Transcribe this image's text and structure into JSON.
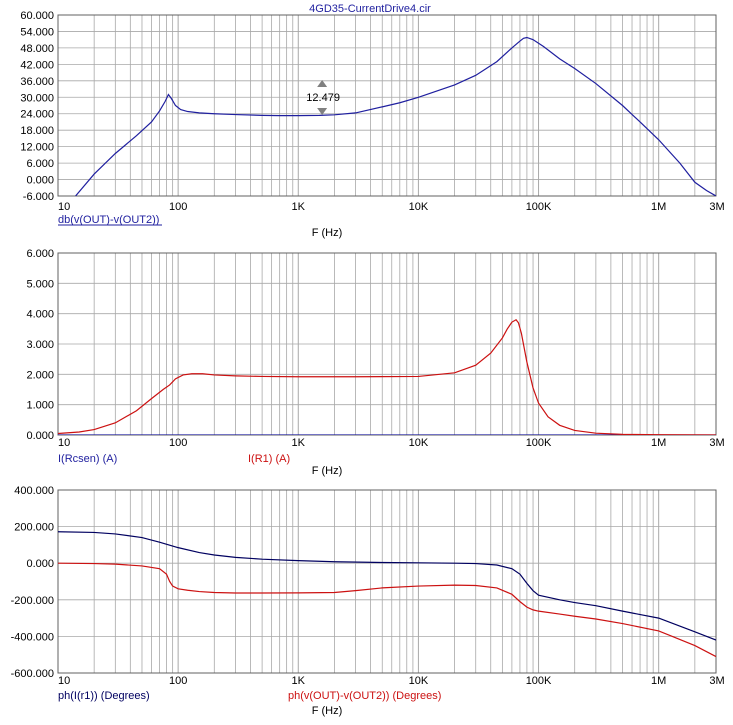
{
  "title": "4GD35-CurrentDrive4.cir",
  "colors": {
    "blue": "#1f1f9f",
    "red": "#cc1111",
    "navy": "#000060",
    "grid": "#a8a8a8",
    "axis": "#000000"
  },
  "chart_data": [
    {
      "type": "line",
      "xscale": "log",
      "xlim": [
        10,
        3000000
      ],
      "x_tick_labels": [
        "10",
        "100",
        "1K",
        "10K",
        "100K",
        "1M",
        "3M"
      ],
      "x_tick_values": [
        10,
        100,
        1000,
        10000,
        100000,
        1000000,
        3000000
      ],
      "ylim": [
        -6,
        60
      ],
      "y_tick_labels": [
        "60.000",
        "54.000",
        "48.000",
        "42.000",
        "36.000",
        "30.000",
        "24.000",
        "18.000",
        "12.000",
        "6.000",
        "0.000",
        "-6.000"
      ],
      "xlabel": "F (Hz)",
      "cursor_label": "12.479",
      "cursor_x": 1580,
      "series": [
        {
          "name": "db(v(OUT)-v(OUT2))",
          "color": "#1f1f9f",
          "x": [
            14,
            20,
            30,
            45,
            60,
            70,
            78,
            83,
            88,
            95,
            105,
            120,
            150,
            200,
            300,
            500,
            700,
            1000,
            1500,
            2000,
            3000,
            5000,
            7000,
            10000,
            20000,
            30000,
            45000,
            60000,
            70000,
            75000,
            80000,
            90000,
            110000,
            150000,
            200000,
            300000,
            500000,
            700000,
            1000000,
            1500000,
            2000000,
            2500000,
            3000000
          ],
          "y": [
            -6,
            2,
            9.5,
            16,
            21,
            25,
            28.5,
            31,
            29.5,
            27,
            25.5,
            24.8,
            24.3,
            24,
            23.7,
            23.4,
            23.3,
            23.3,
            23.4,
            23.6,
            24.3,
            26.5,
            28,
            30,
            34.5,
            38,
            43,
            48,
            50.5,
            51.5,
            51.8,
            51,
            48.5,
            44,
            40.5,
            35,
            27,
            21,
            14.5,
            6,
            -1,
            -4,
            -6
          ]
        }
      ]
    },
    {
      "type": "line",
      "xscale": "log",
      "xlim": [
        10,
        3000000
      ],
      "x_tick_labels": [
        "10",
        "100",
        "1K",
        "10K",
        "100K",
        "1M",
        "3M"
      ],
      "x_tick_values": [
        10,
        100,
        1000,
        10000,
        100000,
        1000000,
        3000000
      ],
      "ylim": [
        0,
        6
      ],
      "y_tick_labels": [
        "6.000",
        "5.000",
        "4.000",
        "3.000",
        "2.000",
        "1.000",
        "0.000"
      ],
      "xlabel": "F (Hz)",
      "series": [
        {
          "name": "I(Rcsen) (A)",
          "color": "#1f1f9f",
          "x": [
            10,
            3000000
          ],
          "y": [
            0,
            0
          ]
        },
        {
          "name": "I(R1) (A)",
          "color": "#cc1111",
          "x": [
            10,
            15,
            20,
            30,
            45,
            60,
            75,
            85,
            95,
            110,
            130,
            160,
            200,
            300,
            500,
            1000,
            3000,
            10000,
            20000,
            30000,
            40000,
            50000,
            55000,
            60000,
            65000,
            68000,
            72000,
            80000,
            90000,
            100000,
            120000,
            150000,
            200000,
            300000,
            500000,
            1000000,
            3000000
          ],
          "y": [
            0.05,
            0.1,
            0.18,
            0.4,
            0.8,
            1.2,
            1.5,
            1.65,
            1.85,
            1.98,
            2.02,
            2.02,
            1.98,
            1.95,
            1.93,
            1.92,
            1.92,
            1.93,
            2.05,
            2.3,
            2.7,
            3.2,
            3.5,
            3.72,
            3.8,
            3.7,
            3.35,
            2.4,
            1.55,
            1.05,
            0.6,
            0.32,
            0.15,
            0.06,
            0.02,
            0.01,
            0.0
          ]
        }
      ]
    },
    {
      "type": "line",
      "xscale": "log",
      "xlim": [
        10,
        3000000
      ],
      "x_tick_labels": [
        "10",
        "100",
        "1K",
        "10K",
        "100K",
        "1M",
        "3M"
      ],
      "x_tick_values": [
        10,
        100,
        1000,
        10000,
        100000,
        1000000,
        3000000
      ],
      "ylim": [
        -600,
        400
      ],
      "y_tick_labels": [
        "400.000",
        "200.000",
        "0.000",
        "-200.000",
        "-400.000",
        "-600.000"
      ],
      "xlabel": "F (Hz)",
      "series": [
        {
          "name": "ph(I(r1)) (Degrees)",
          "color": "#000060",
          "x": [
            10,
            20,
            30,
            50,
            70,
            100,
            150,
            200,
            300,
            500,
            1000,
            2000,
            5000,
            10000,
            20000,
            30000,
            45000,
            60000,
            70000,
            80000,
            90000,
            100000,
            150000,
            200000,
            300000,
            500000,
            1000000,
            2000000,
            3000000
          ],
          "y": [
            172,
            168,
            160,
            140,
            115,
            85,
            58,
            45,
            32,
            22,
            14,
            8,
            4,
            2,
            0,
            -2,
            -10,
            -30,
            -60,
            -110,
            -150,
            -175,
            -200,
            -215,
            -232,
            -262,
            -300,
            -375,
            -420
          ]
        },
        {
          "name": "ph(v(OUT)-v(OUT2)) (Degrees)",
          "color": "#cc1111",
          "x": [
            10,
            20,
            30,
            50,
            70,
            80,
            85,
            90,
            100,
            120,
            150,
            200,
            300,
            500,
            1000,
            2000,
            3000,
            5000,
            10000,
            20000,
            30000,
            45000,
            60000,
            70000,
            80000,
            90000,
            100000,
            150000,
            200000,
            300000,
            500000,
            1000000,
            2000000,
            3000000
          ],
          "y": [
            0,
            -2,
            -5,
            -15,
            -30,
            -60,
            -100,
            -125,
            -140,
            -148,
            -155,
            -160,
            -163,
            -163,
            -162,
            -160,
            -150,
            -135,
            -125,
            -120,
            -122,
            -135,
            -170,
            -210,
            -240,
            -255,
            -262,
            -278,
            -290,
            -305,
            -330,
            -370,
            -450,
            -510
          ]
        }
      ]
    }
  ]
}
